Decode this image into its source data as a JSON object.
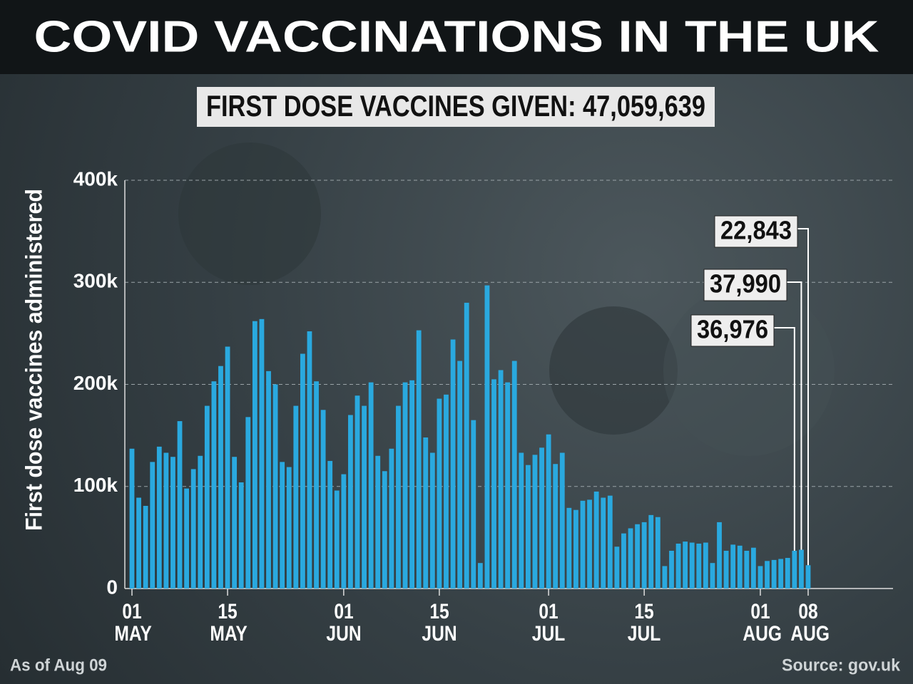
{
  "chart_data": {
    "type": "bar",
    "title": "COVID VACCINATIONS IN THE UK",
    "subtitle": "FIRST DOSE VACCINES GIVEN: 47,059,639",
    "y_label": "First dose vaccines administered",
    "note": "As of Aug 09",
    "source": "Source: gov.uk",
    "color": "#2aa9df",
    "grid": true,
    "ylim": [
      0,
      400000
    ],
    "yticks": [
      0,
      {
        "value": 100000,
        "label": "100k"
      },
      {
        "value": 200000,
        "label": "200k"
      },
      {
        "value": 300000,
        "label": "300k"
      },
      {
        "value": 400000,
        "label": "400k"
      }
    ],
    "categories": [
      "01 MAY",
      null,
      null,
      null,
      null,
      null,
      null,
      null,
      null,
      null,
      null,
      null,
      null,
      null,
      "15 MAY",
      null,
      null,
      null,
      null,
      null,
      null,
      null,
      null,
      null,
      null,
      null,
      null,
      null,
      null,
      null,
      null,
      "01 JUN",
      null,
      null,
      null,
      null,
      null,
      null,
      null,
      null,
      null,
      null,
      null,
      null,
      null,
      "15 JUN",
      null,
      null,
      null,
      null,
      null,
      null,
      null,
      null,
      null,
      null,
      null,
      null,
      null,
      null,
      null,
      "01 JUL",
      null,
      null,
      null,
      null,
      null,
      null,
      null,
      null,
      null,
      null,
      null,
      null,
      null,
      "15 JUL",
      null,
      null,
      null,
      null,
      null,
      null,
      null,
      null,
      null,
      null,
      null,
      null,
      null,
      null,
      null,
      null,
      "01 AUG",
      null,
      null,
      null,
      null,
      null,
      null,
      "08 AUG"
    ],
    "values": [
      137000,
      89000,
      81000,
      124000,
      139000,
      133000,
      129000,
      164000,
      98000,
      117000,
      130000,
      179000,
      203000,
      218000,
      237000,
      129000,
      104000,
      168000,
      262000,
      264000,
      213000,
      200000,
      124000,
      119000,
      179000,
      230000,
      252000,
      203000,
      175000,
      125000,
      96000,
      112000,
      170000,
      189000,
      179000,
      202000,
      130000,
      115000,
      137000,
      179000,
      202000,
      204000,
      253000,
      148000,
      133000,
      186000,
      190000,
      244000,
      223000,
      280000,
      165000,
      25000,
      297000,
      205000,
      214000,
      202000,
      223000,
      133000,
      121000,
      131000,
      138000,
      151000,
      122000,
      133000,
      79000,
      77000,
      86000,
      87000,
      95000,
      89000,
      91000,
      41000,
      54000,
      59000,
      63000,
      65000,
      72000,
      70000,
      22000,
      37000,
      44000,
      46000,
      45000,
      44000,
      45000,
      25000,
      65000,
      37000,
      43000,
      42000,
      37000,
      40000,
      22000,
      27000,
      28000,
      29000,
      30000,
      36976,
      37990,
      22843
    ],
    "value_labels": [
      null,
      null,
      null,
      null,
      null,
      null,
      null,
      null,
      null,
      null,
      null,
      null,
      null,
      null,
      null,
      null,
      null,
      null,
      null,
      null,
      null,
      null,
      null,
      null,
      null,
      null,
      null,
      null,
      null,
      null,
      null,
      null,
      null,
      null,
      null,
      null,
      null,
      null,
      null,
      null,
      null,
      null,
      null,
      null,
      null,
      null,
      null,
      null,
      null,
      null,
      null,
      null,
      null,
      null,
      null,
      null,
      null,
      null,
      null,
      null,
      null,
      null,
      null,
      null,
      null,
      null,
      null,
      null,
      null,
      null,
      null,
      null,
      null,
      null,
      null,
      null,
      null,
      null,
      null,
      null,
      null,
      null,
      null,
      null,
      null,
      null,
      null,
      null,
      null,
      null,
      null,
      null,
      null,
      null,
      null,
      null,
      null,
      "36,976",
      "37,990",
      "22,843"
    ]
  }
}
